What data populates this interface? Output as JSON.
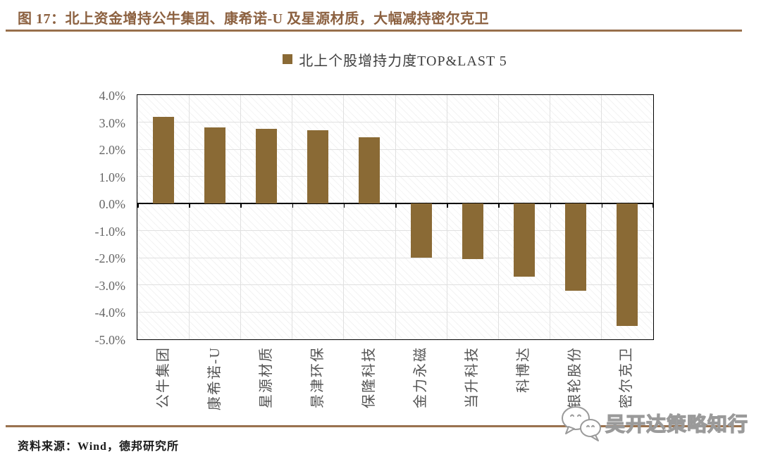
{
  "figure": {
    "title": "图 17：北上资金增持公牛集团、康希诺-U 及星源材质，大幅减持密尔克卫",
    "source": "资料来源：Wind，德邦研究所",
    "watermark": "吴开达策略知行"
  },
  "chart_data": {
    "type": "bar",
    "legend": "北上个股增持力度TOP&LAST 5",
    "legend_position": "top-center",
    "categories": [
      "公牛集团",
      "康希诺-U",
      "星源材质",
      "景津环保",
      "保隆科技",
      "金力永磁",
      "当升科技",
      "科博达",
      "银轮股份",
      "密尔克卫"
    ],
    "values": [
      3.2,
      2.8,
      2.75,
      2.7,
      2.45,
      -2.0,
      -2.05,
      -2.7,
      -3.2,
      -4.5
    ],
    "unit": "%",
    "ylim": [
      -5.0,
      4.0
    ],
    "yticks": [
      "4.0%",
      "3.0%",
      "2.0%",
      "1.0%",
      "0.0%",
      "-1.0%",
      "-2.0%",
      "-3.0%",
      "-4.0%",
      "-5.0%"
    ],
    "grid": true
  },
  "colors": {
    "bar": "#8a6a35",
    "accent_brown": "#8c6140",
    "rule_brown": "#8a6140",
    "grid": "#e0e0e0",
    "axis_text": "#666666",
    "legend_text": "#3f3f3f"
  }
}
